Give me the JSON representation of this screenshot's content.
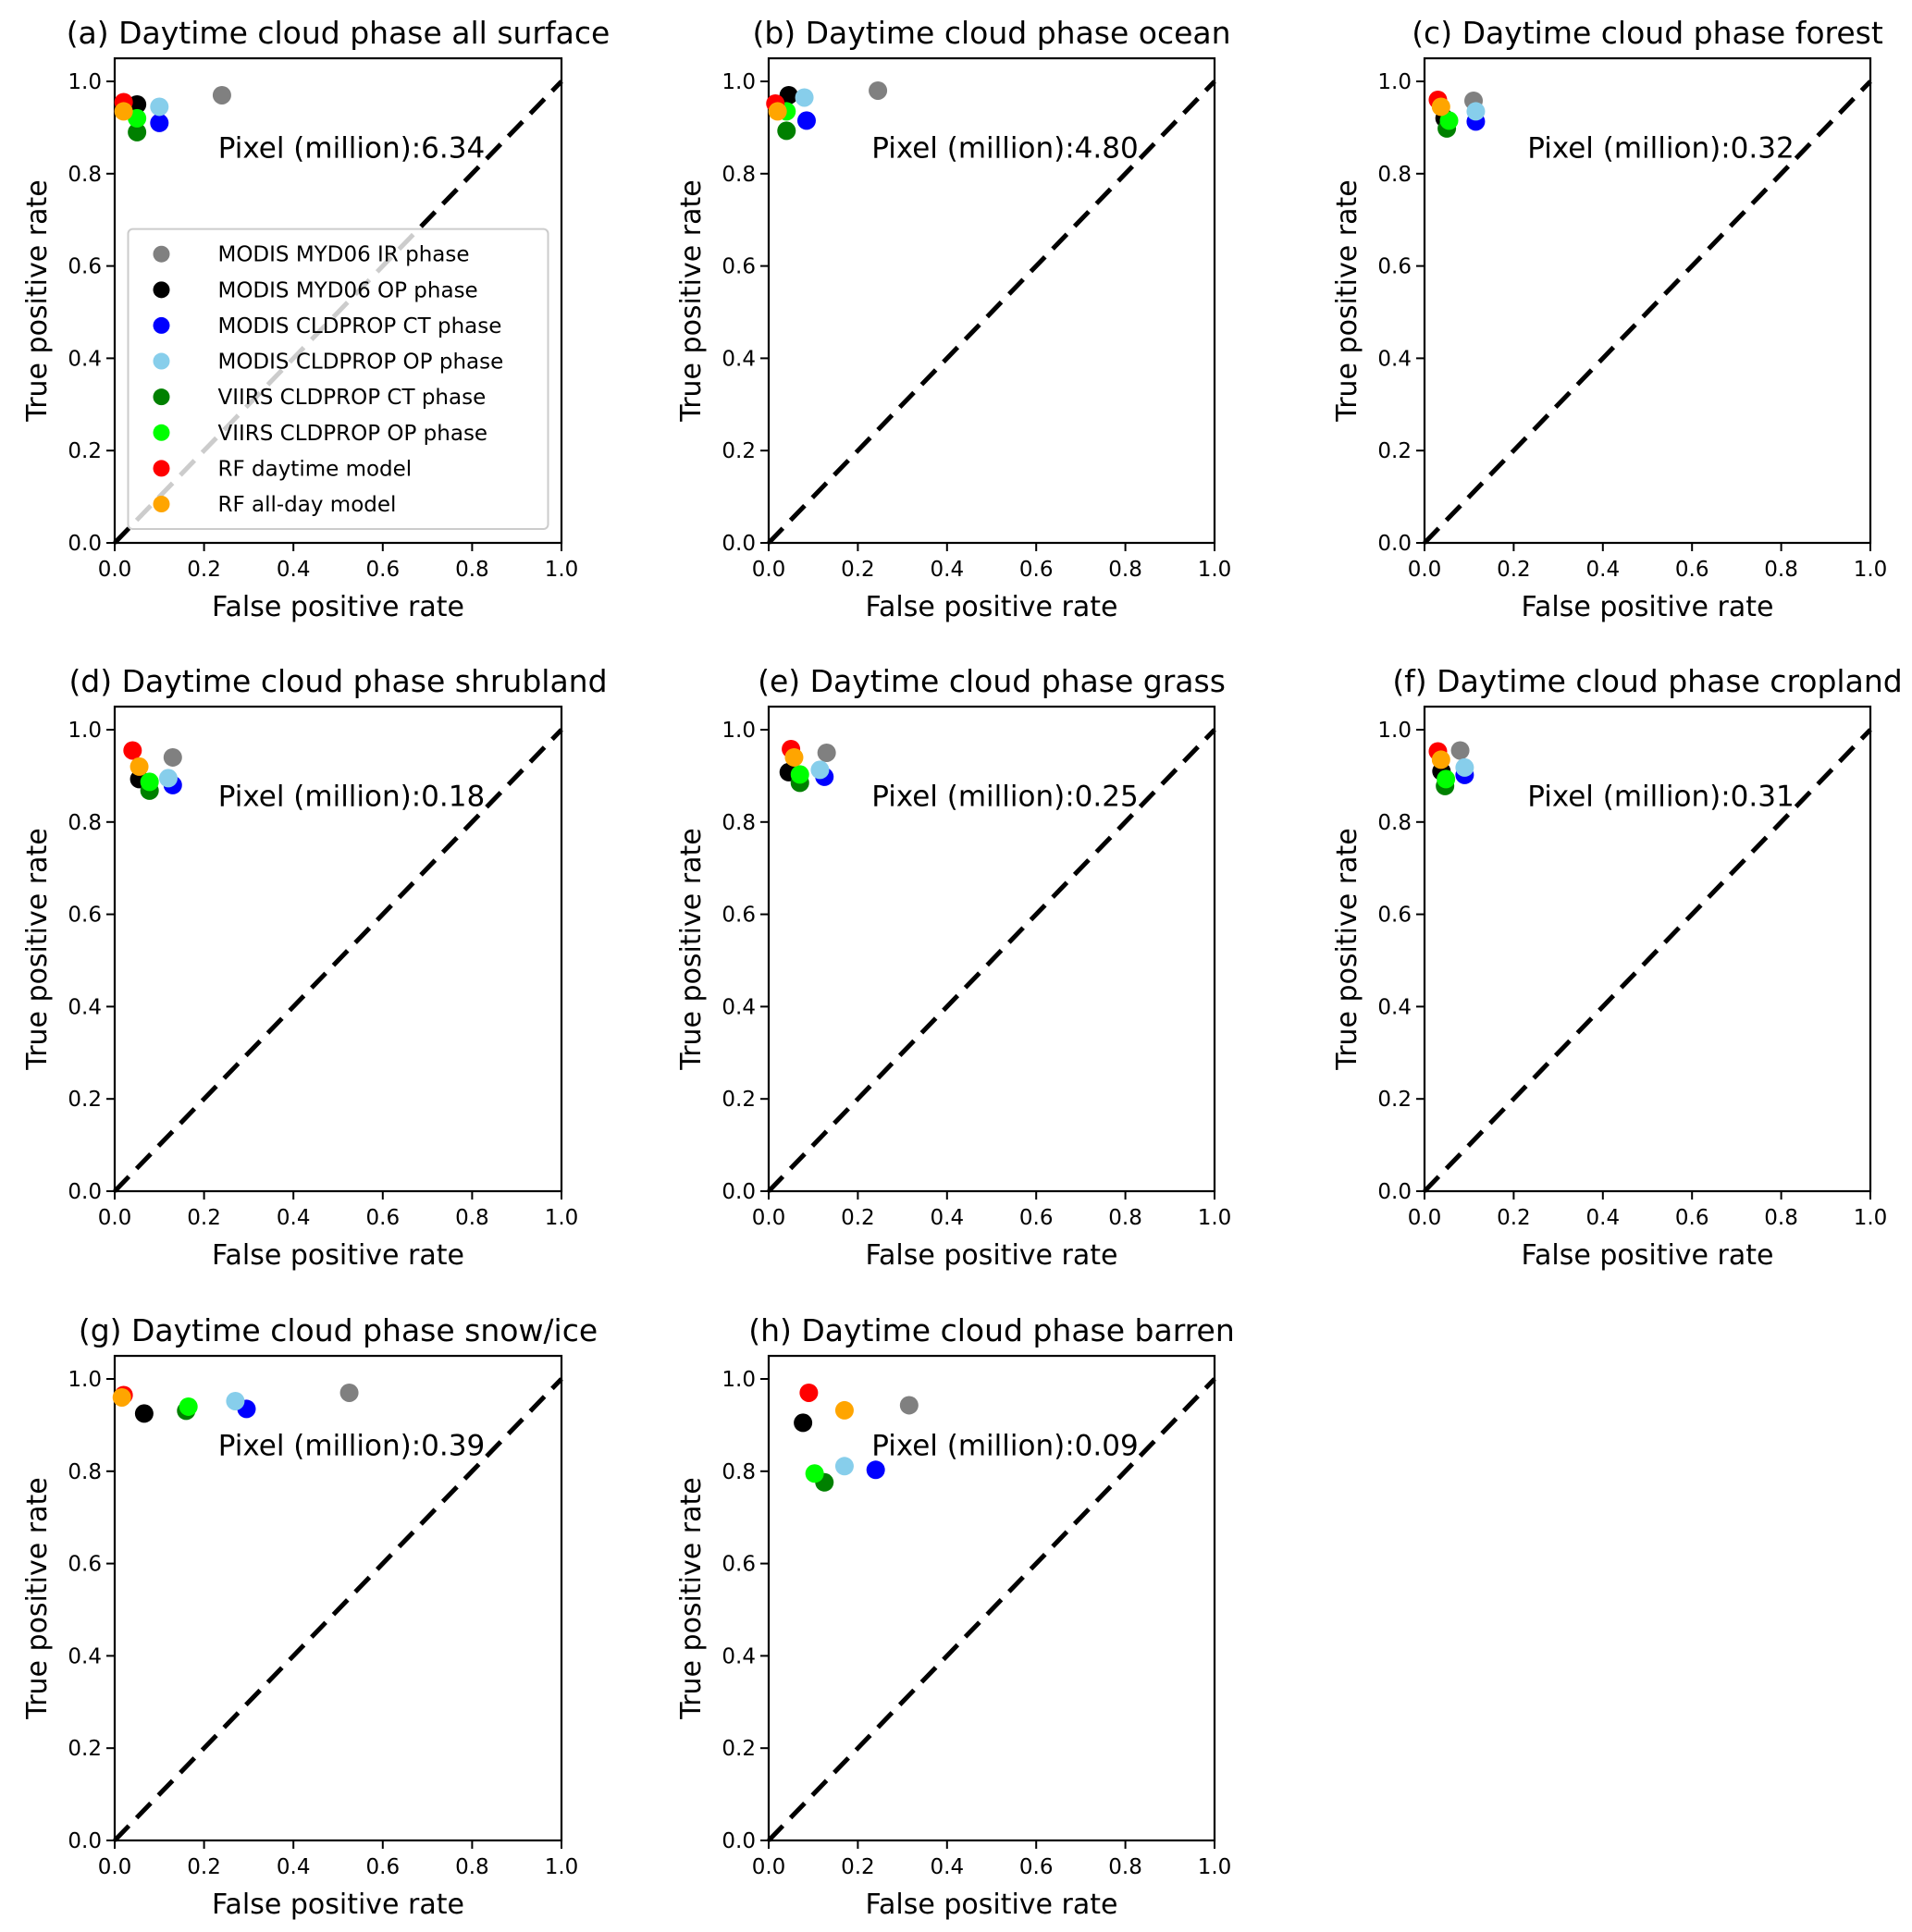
{
  "figure": {
    "series": [
      {
        "name": "MODIS MYD06 IR phase",
        "color": "#808080"
      },
      {
        "name": "MODIS MYD06 OP phase",
        "color": "#000000"
      },
      {
        "name": "MODIS CLDPROP CT phase",
        "color": "#0000ff"
      },
      {
        "name": "MODIS CLDPROP OP phase",
        "color": "#87ceeb"
      },
      {
        "name": "VIIRS CLDPROP CT phase",
        "color": "#008000"
      },
      {
        "name": "VIIRS CLDPROP OP phase",
        "color": "#00ff00"
      },
      {
        "name": "RF daytime model",
        "color": "#ff0000"
      },
      {
        "name": "RF all-day model",
        "color": "#ffa500"
      }
    ]
  },
  "chart_data": [
    {
      "type": "scatter",
      "id": "a",
      "title": "(a) Daytime cloud phase all surface",
      "xlabel": "False positive rate",
      "ylabel": "True positive rate",
      "xlim": [
        0,
        1.0
      ],
      "ylim": [
        0,
        1.05
      ],
      "xticks": [
        "0.0",
        "0.2",
        "0.4",
        "0.6",
        "0.8",
        "1.0"
      ],
      "yticks": [
        "0.0",
        "0.2",
        "0.4",
        "0.6",
        "0.8",
        "1.0"
      ],
      "annotation": "Pixel (million):6.34",
      "legend": "center-left",
      "reference_line": "dashed diagonal y=x",
      "points": [
        {
          "series": "MODIS MYD06 IR phase",
          "x": 0.24,
          "y": 0.97
        },
        {
          "series": "MODIS MYD06 OP phase",
          "x": 0.05,
          "y": 0.95
        },
        {
          "series": "MODIS CLDPROP CT phase",
          "x": 0.1,
          "y": 0.91
        },
        {
          "series": "MODIS CLDPROP OP phase",
          "x": 0.1,
          "y": 0.945
        },
        {
          "series": "VIIRS CLDPROP CT phase",
          "x": 0.05,
          "y": 0.89
        },
        {
          "series": "VIIRS CLDPROP OP phase",
          "x": 0.05,
          "y": 0.92
        },
        {
          "series": "RF daytime model",
          "x": 0.02,
          "y": 0.955
        },
        {
          "series": "RF all-day model",
          "x": 0.02,
          "y": 0.935
        }
      ]
    },
    {
      "type": "scatter",
      "id": "b",
      "title": "(b) Daytime cloud phase ocean",
      "xlabel": "False positive rate",
      "ylabel": "True positive rate",
      "xlim": [
        0,
        1.0
      ],
      "ylim": [
        0,
        1.05
      ],
      "xticks": [
        "0.0",
        "0.2",
        "0.4",
        "0.6",
        "0.8",
        "1.0"
      ],
      "yticks": [
        "0.0",
        "0.2",
        "0.4",
        "0.6",
        "0.8",
        "1.0"
      ],
      "annotation": "Pixel (million):4.80",
      "reference_line": "dashed diagonal y=x",
      "points": [
        {
          "series": "MODIS MYD06 IR phase",
          "x": 0.245,
          "y": 0.98
        },
        {
          "series": "MODIS MYD06 OP phase",
          "x": 0.045,
          "y": 0.97
        },
        {
          "series": "MODIS CLDPROP CT phase",
          "x": 0.085,
          "y": 0.915
        },
        {
          "series": "MODIS CLDPROP OP phase",
          "x": 0.08,
          "y": 0.965
        },
        {
          "series": "VIIRS CLDPROP CT phase",
          "x": 0.04,
          "y": 0.893
        },
        {
          "series": "VIIRS CLDPROP OP phase",
          "x": 0.04,
          "y": 0.935
        },
        {
          "series": "RF daytime model",
          "x": 0.015,
          "y": 0.952
        },
        {
          "series": "RF all-day model",
          "x": 0.02,
          "y": 0.935
        }
      ]
    },
    {
      "type": "scatter",
      "id": "c",
      "title": "(c) Daytime cloud phase forest",
      "xlabel": "False positive rate",
      "ylabel": "True positive rate",
      "xlim": [
        0,
        1.0
      ],
      "ylim": [
        0,
        1.05
      ],
      "xticks": [
        "0.0",
        "0.2",
        "0.4",
        "0.6",
        "0.8",
        "1.0"
      ],
      "yticks": [
        "0.0",
        "0.2",
        "0.4",
        "0.6",
        "0.8",
        "1.0"
      ],
      "annotation": "Pixel (million):0.32",
      "reference_line": "dashed diagonal y=x",
      "points": [
        {
          "series": "MODIS MYD06 IR phase",
          "x": 0.11,
          "y": 0.958
        },
        {
          "series": "MODIS MYD06 OP phase",
          "x": 0.045,
          "y": 0.92
        },
        {
          "series": "MODIS CLDPROP CT phase",
          "x": 0.115,
          "y": 0.913
        },
        {
          "series": "MODIS CLDPROP OP phase",
          "x": 0.115,
          "y": 0.935
        },
        {
          "series": "VIIRS CLDPROP CT phase",
          "x": 0.05,
          "y": 0.898
        },
        {
          "series": "VIIRS CLDPROP OP phase",
          "x": 0.055,
          "y": 0.915
        },
        {
          "series": "RF daytime model",
          "x": 0.03,
          "y": 0.96
        },
        {
          "series": "RF all-day model",
          "x": 0.037,
          "y": 0.945
        }
      ]
    },
    {
      "type": "scatter",
      "id": "d",
      "title": "(d) Daytime cloud phase  shrubland",
      "xlabel": "False positive rate",
      "ylabel": "True positive rate",
      "xlim": [
        0,
        1.0
      ],
      "ylim": [
        0,
        1.05
      ],
      "xticks": [
        "0.0",
        "0.2",
        "0.4",
        "0.6",
        "0.8",
        "1.0"
      ],
      "yticks": [
        "0.0",
        "0.2",
        "0.4",
        "0.6",
        "0.8",
        "1.0"
      ],
      "annotation": "Pixel (million):0.18",
      "reference_line": "dashed diagonal y=x",
      "points": [
        {
          "series": "MODIS MYD06 IR phase",
          "x": 0.13,
          "y": 0.94
        },
        {
          "series": "MODIS MYD06 OP phase",
          "x": 0.055,
          "y": 0.893
        },
        {
          "series": "MODIS CLDPROP CT phase",
          "x": 0.13,
          "y": 0.88
        },
        {
          "series": "MODIS CLDPROP OP phase",
          "x": 0.12,
          "y": 0.895
        },
        {
          "series": "VIIRS CLDPROP CT phase",
          "x": 0.078,
          "y": 0.868
        },
        {
          "series": "VIIRS CLDPROP OP phase",
          "x": 0.078,
          "y": 0.887
        },
        {
          "series": "RF daytime model",
          "x": 0.04,
          "y": 0.955
        },
        {
          "series": "RF all-day model",
          "x": 0.055,
          "y": 0.92
        }
      ]
    },
    {
      "type": "scatter",
      "id": "e",
      "title": "(e) Daytime cloud phase grass",
      "xlabel": "False positive rate",
      "ylabel": "True positive rate",
      "xlim": [
        0,
        1.0
      ],
      "ylim": [
        0,
        1.05
      ],
      "xticks": [
        "0.0",
        "0.2",
        "0.4",
        "0.6",
        "0.8",
        "1.0"
      ],
      "yticks": [
        "0.0",
        "0.2",
        "0.4",
        "0.6",
        "0.8",
        "1.0"
      ],
      "annotation": "Pixel (million):0.25",
      "reference_line": "dashed diagonal y=x",
      "points": [
        {
          "series": "MODIS MYD06 IR phase",
          "x": 0.13,
          "y": 0.95
        },
        {
          "series": "MODIS MYD06 OP phase",
          "x": 0.045,
          "y": 0.908
        },
        {
          "series": "MODIS CLDPROP CT phase",
          "x": 0.125,
          "y": 0.898
        },
        {
          "series": "MODIS CLDPROP OP phase",
          "x": 0.115,
          "y": 0.913
        },
        {
          "series": "VIIRS CLDPROP CT phase",
          "x": 0.07,
          "y": 0.885
        },
        {
          "series": "VIIRS CLDPROP OP phase",
          "x": 0.07,
          "y": 0.903
        },
        {
          "series": "RF daytime model",
          "x": 0.05,
          "y": 0.958
        },
        {
          "series": "RF all-day model",
          "x": 0.057,
          "y": 0.94
        }
      ]
    },
    {
      "type": "scatter",
      "id": "f",
      "title": "(f) Daytime cloud phase cropland",
      "xlabel": "False positive rate",
      "ylabel": "True positive rate",
      "xlim": [
        0,
        1.0
      ],
      "ylim": [
        0,
        1.05
      ],
      "xticks": [
        "0.0",
        "0.2",
        "0.4",
        "0.6",
        "0.8",
        "1.0"
      ],
      "yticks": [
        "0.0",
        "0.2",
        "0.4",
        "0.6",
        "0.8",
        "1.0"
      ],
      "annotation": "Pixel (million):0.31",
      "reference_line": "dashed diagonal y=x",
      "points": [
        {
          "series": "MODIS MYD06 IR phase",
          "x": 0.08,
          "y": 0.955
        },
        {
          "series": "MODIS MYD06 OP phase",
          "x": 0.038,
          "y": 0.91
        },
        {
          "series": "MODIS CLDPROP CT phase",
          "x": 0.09,
          "y": 0.902
        },
        {
          "series": "MODIS CLDPROP OP phase",
          "x": 0.09,
          "y": 0.918
        },
        {
          "series": "VIIRS CLDPROP CT phase",
          "x": 0.046,
          "y": 0.878
        },
        {
          "series": "VIIRS CLDPROP OP phase",
          "x": 0.048,
          "y": 0.893
        },
        {
          "series": "RF daytime model",
          "x": 0.03,
          "y": 0.953
        },
        {
          "series": "RF all-day model",
          "x": 0.037,
          "y": 0.935
        }
      ]
    },
    {
      "type": "scatter",
      "id": "g",
      "title": "(g) Daytime cloud phase snow/ice",
      "xlabel": "False positive rate",
      "ylabel": "True positive rate",
      "xlim": [
        0,
        1.0
      ],
      "ylim": [
        0,
        1.05
      ],
      "xticks": [
        "0.0",
        "0.2",
        "0.4",
        "0.6",
        "0.8",
        "1.0"
      ],
      "yticks": [
        "0.0",
        "0.2",
        "0.4",
        "0.6",
        "0.8",
        "1.0"
      ],
      "annotation": "Pixel (million):0.39",
      "reference_line": "dashed diagonal y=x",
      "points": [
        {
          "series": "MODIS MYD06 IR phase",
          "x": 0.525,
          "y": 0.97
        },
        {
          "series": "MODIS MYD06 OP phase",
          "x": 0.066,
          "y": 0.925
        },
        {
          "series": "MODIS CLDPROP CT phase",
          "x": 0.295,
          "y": 0.935
        },
        {
          "series": "MODIS CLDPROP OP phase",
          "x": 0.27,
          "y": 0.952
        },
        {
          "series": "VIIRS CLDPROP CT phase",
          "x": 0.16,
          "y": 0.931
        },
        {
          "series": "VIIRS CLDPROP OP phase",
          "x": 0.165,
          "y": 0.94
        },
        {
          "series": "RF daytime model",
          "x": 0.02,
          "y": 0.965
        },
        {
          "series": "RF all-day model",
          "x": 0.016,
          "y": 0.96
        }
      ]
    },
    {
      "type": "scatter",
      "id": "h",
      "title": "(h) Daytime cloud phase barren",
      "xlabel": "False positive rate",
      "ylabel": "True positive rate",
      "xlim": [
        0,
        1.0
      ],
      "ylim": [
        0,
        1.05
      ],
      "xticks": [
        "0.0",
        "0.2",
        "0.4",
        "0.6",
        "0.8",
        "1.0"
      ],
      "yticks": [
        "0.0",
        "0.2",
        "0.4",
        "0.6",
        "0.8",
        "1.0"
      ],
      "annotation": "Pixel (million):0.09",
      "reference_line": "dashed diagonal y=x",
      "points": [
        {
          "series": "MODIS MYD06 IR phase",
          "x": 0.315,
          "y": 0.943
        },
        {
          "series": "MODIS MYD06 OP phase",
          "x": 0.077,
          "y": 0.905
        },
        {
          "series": "MODIS CLDPROP CT phase",
          "x": 0.24,
          "y": 0.803
        },
        {
          "series": "MODIS CLDPROP OP phase",
          "x": 0.17,
          "y": 0.811
        },
        {
          "series": "VIIRS CLDPROP CT phase",
          "x": 0.125,
          "y": 0.776
        },
        {
          "series": "VIIRS CLDPROP OP phase",
          "x": 0.103,
          "y": 0.795
        },
        {
          "series": "RF daytime model",
          "x": 0.09,
          "y": 0.97
        },
        {
          "series": "RF all-day model",
          "x": 0.17,
          "y": 0.932
        }
      ]
    }
  ]
}
